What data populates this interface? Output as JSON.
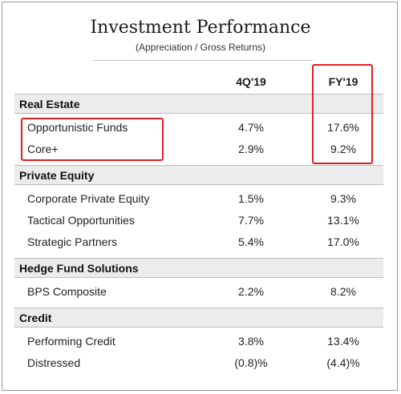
{
  "title": "Investment Performance",
  "subtitle": "(Appreciation / Gross Returns)",
  "columns": {
    "q": "4Q'19",
    "fy": "FY'19"
  },
  "sections": [
    {
      "name": "Real Estate",
      "rows": [
        {
          "name": "Opportunistic Funds",
          "q": "4.7%",
          "fy": "17.6%"
        },
        {
          "name": "Core+",
          "q": "2.9%",
          "fy": "9.2%"
        }
      ]
    },
    {
      "name": "Private Equity",
      "rows": [
        {
          "name": "Corporate Private Equity",
          "q": "1.5%",
          "fy": "9.3%"
        },
        {
          "name": "Tactical Opportunities",
          "q": "7.7%",
          "fy": "13.1%"
        },
        {
          "name": "Strategic Partners",
          "q": "5.4%",
          "fy": "17.0%"
        }
      ]
    },
    {
      "name": "Hedge Fund Solutions",
      "rows": [
        {
          "name": "BPS Composite",
          "q": "2.2%",
          "fy": "8.2%"
        }
      ]
    },
    {
      "name": "Credit",
      "rows": [
        {
          "name": "Performing Credit",
          "q": "3.8%",
          "fy": "13.4%"
        },
        {
          "name": "Distressed",
          "q": "(0.8)%",
          "fy": "(4.4)%"
        }
      ]
    }
  ],
  "colors": {
    "highlight": "#e02020",
    "band": "#ececec"
  }
}
